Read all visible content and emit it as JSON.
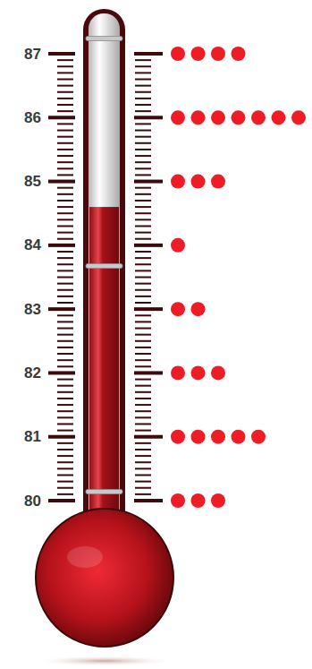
{
  "chart_data": {
    "type": "dot",
    "orientation": "horizontal",
    "categories": [
      80,
      81,
      82,
      83,
      84,
      85,
      86,
      87
    ],
    "values": [
      3,
      5,
      3,
      2,
      1,
      3,
      7,
      4
    ],
    "color": "#ee1c25",
    "thermometer_value": 84.6,
    "ylim": [
      80,
      87
    ],
    "yticks": [
      80,
      81,
      82,
      83,
      84,
      85,
      86,
      87
    ]
  }
}
